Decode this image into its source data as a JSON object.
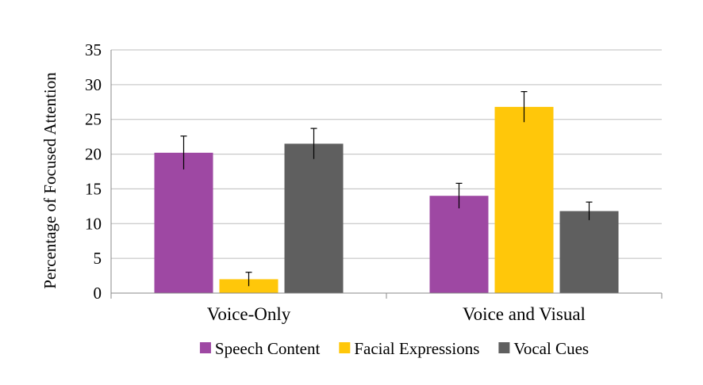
{
  "chart_data": {
    "type": "bar",
    "title": "",
    "xlabel": "",
    "ylabel": "Percentage of Focused Attention",
    "ylim": [
      0,
      35
    ],
    "yticks": [
      "0",
      "5",
      "10",
      "15",
      "20",
      "25",
      "30",
      "35"
    ],
    "categories": [
      "Voice-Only",
      "Voice and Visual"
    ],
    "series": [
      {
        "name": "Speech Content",
        "color": "#9E48A3",
        "values": [
          20.2,
          14.0
        ],
        "errors": [
          2.4,
          1.8
        ]
      },
      {
        "name": "Facial Expressions",
        "color": "#FFC70A",
        "values": [
          2.0,
          26.8
        ],
        "errors": [
          1.0,
          2.2
        ]
      },
      {
        "name": "Vocal Cues",
        "color": "#5F5F5F",
        "values": [
          21.5,
          11.8
        ],
        "errors": [
          2.2,
          1.3
        ]
      }
    ],
    "grid": true,
    "legend_position": "bottom"
  }
}
